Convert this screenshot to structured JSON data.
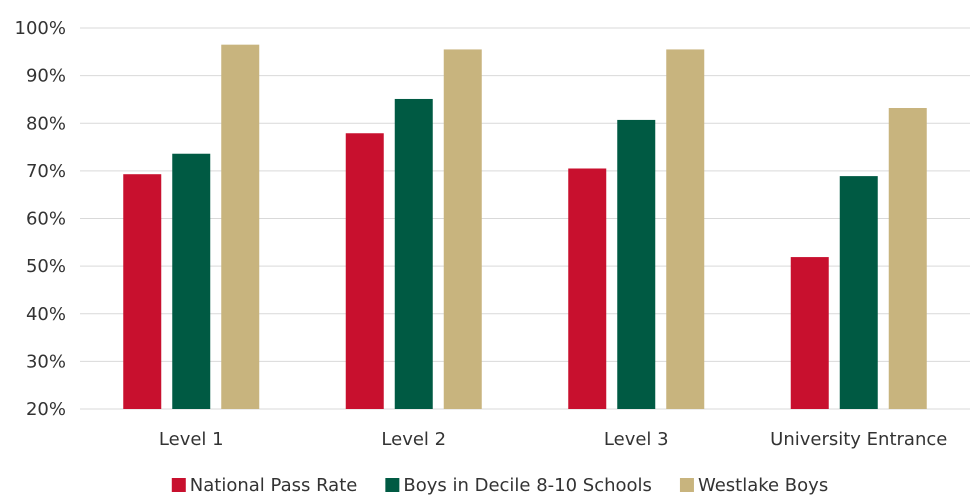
{
  "chart_data": {
    "type": "bar",
    "categories": [
      "Level 1",
      "Level 2",
      "Level 3",
      "University Entrance"
    ],
    "series": [
      {
        "name": "National Pass Rate",
        "color": "#c8102e",
        "values": [
          69.3,
          77.9,
          70.5,
          51.9
        ]
      },
      {
        "name": "Boys in Decile 8-10 Schools",
        "color": "#005a43",
        "values": [
          73.6,
          85.1,
          80.7,
          68.9
        ]
      },
      {
        "name": "Westlake Boys",
        "color": "#c8b47e",
        "values": [
          96.5,
          95.5,
          95.5,
          83.2
        ]
      }
    ],
    "ylim": [
      20,
      100
    ],
    "y_ticks": [
      20,
      30,
      40,
      50,
      60,
      70,
      80,
      90,
      100
    ],
    "y_tick_labels": [
      "20%",
      "30%",
      "40%",
      "50%",
      "60%",
      "70%",
      "80%",
      "90%",
      "100%"
    ],
    "grid": true,
    "legend_position": "bottom",
    "title": "",
    "xlabel": "",
    "ylabel": ""
  }
}
